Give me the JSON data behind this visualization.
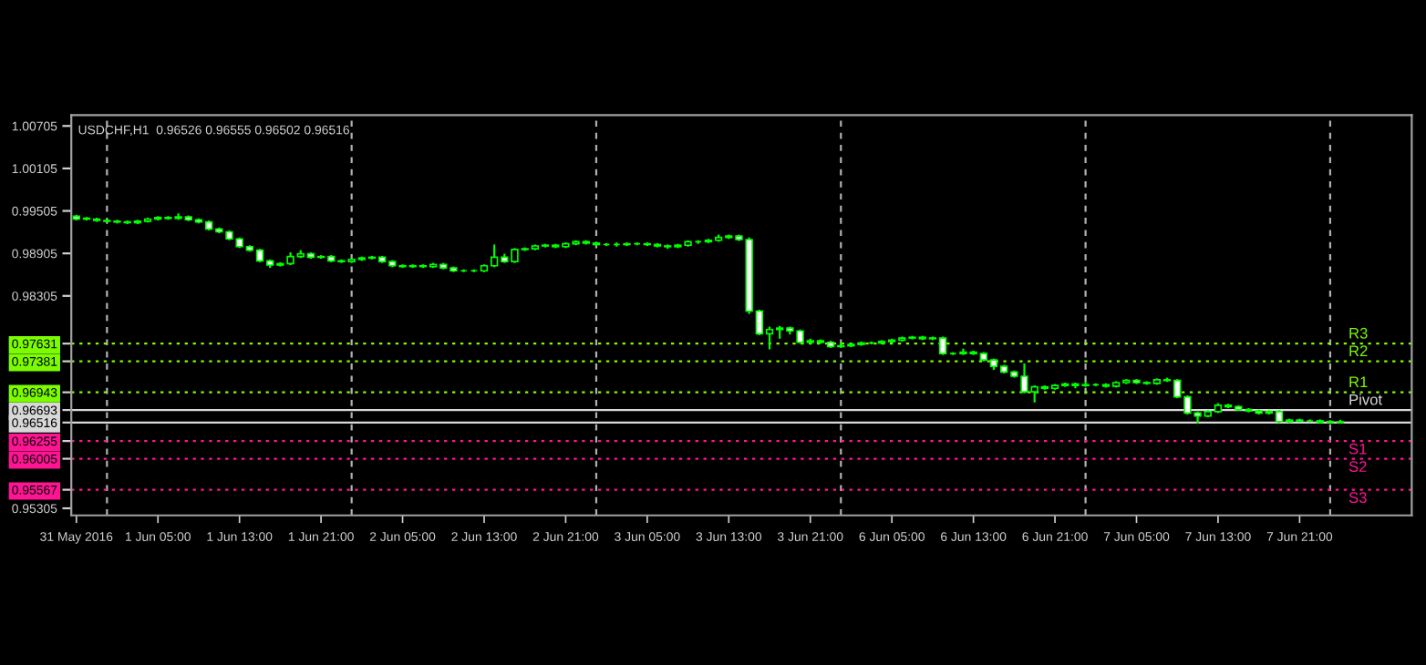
{
  "chart_data": {
    "type": "candlestick",
    "title": "USDCHF,H1  0.96526 0.96555 0.96502 0.96516",
    "categories": [
      "31 May 2016",
      null,
      null,
      null,
      null,
      null,
      null,
      null,
      "1 Jun 05:00",
      null,
      null,
      null,
      null,
      null,
      null,
      null,
      "1 Jun 13:00",
      null,
      null,
      null,
      null,
      null,
      null,
      null,
      "1 Jun 21:00",
      null,
      null,
      null,
      null,
      null,
      null,
      null,
      "2 Jun 05:00",
      null,
      null,
      null,
      null,
      null,
      null,
      null,
      "2 Jun 13:00",
      null,
      null,
      null,
      null,
      null,
      null,
      null,
      "2 Jun 21:00",
      null,
      null,
      null,
      null,
      null,
      null,
      null,
      "3 Jun 05:00",
      null,
      null,
      null,
      null,
      null,
      null,
      null,
      "3 Jun 13:00",
      null,
      null,
      null,
      null,
      null,
      null,
      null,
      "3 Jun 21:00",
      null,
      null,
      null,
      null,
      null,
      null,
      null,
      "6 Jun 05:00",
      null,
      null,
      null,
      null,
      null,
      null,
      null,
      "6 Jun 13:00",
      null,
      null,
      null,
      null,
      null,
      null,
      null,
      "6 Jun 21:00",
      null,
      null,
      null,
      null,
      null,
      null,
      null,
      "7 Jun 05:00",
      null,
      null,
      null,
      null,
      null,
      null,
      null,
      "7 Jun 13:00",
      null,
      null,
      null,
      null,
      null,
      null,
      null,
      "7 Jun 21:00",
      null,
      null,
      null,
      null
    ],
    "ohlc": [
      [
        0.9943,
        0.9945,
        0.9937,
        0.9939
      ],
      [
        0.994,
        0.9942,
        0.9937,
        0.9939
      ],
      [
        0.9939,
        0.9941,
        0.9935,
        0.9937
      ],
      [
        0.9937,
        0.9939,
        0.9934,
        0.9936
      ],
      [
        0.9936,
        0.9938,
        0.9933,
        0.9935
      ],
      [
        0.9935,
        0.9937,
        0.9932,
        0.9934
      ],
      [
        0.9934,
        0.9938,
        0.9932,
        0.9936
      ],
      [
        0.9936,
        0.9941,
        0.9934,
        0.9939
      ],
      [
        0.9939,
        0.9943,
        0.9937,
        0.9941
      ],
      [
        0.9941,
        0.9943,
        0.9938,
        0.994
      ],
      [
        0.994,
        0.9947,
        0.9938,
        0.9942
      ],
      [
        0.9942,
        0.9944,
        0.9936,
        0.9938
      ],
      [
        0.9938,
        0.994,
        0.9933,
        0.9935
      ],
      [
        0.9935,
        0.9937,
        0.9923,
        0.9925
      ],
      [
        0.9925,
        0.9927,
        0.9919,
        0.9921
      ],
      [
        0.9921,
        0.9923,
        0.9909,
        0.9911
      ],
      [
        0.9911,
        0.9913,
        0.9898,
        0.99
      ],
      [
        0.99,
        0.9902,
        0.9893,
        0.9895
      ],
      [
        0.9895,
        0.9897,
        0.9878,
        0.988
      ],
      [
        0.988,
        0.9882,
        0.987,
        0.9874
      ],
      [
        0.9874,
        0.9878,
        0.9872,
        0.9876
      ],
      [
        0.9876,
        0.9892,
        0.9874,
        0.9886
      ],
      [
        0.9886,
        0.9895,
        0.9884,
        0.989
      ],
      [
        0.989,
        0.9892,
        0.9883,
        0.9885
      ],
      [
        0.9885,
        0.9888,
        0.9883,
        0.9886
      ],
      [
        0.9886,
        0.9888,
        0.9878,
        0.988
      ],
      [
        0.988,
        0.9882,
        0.9877,
        0.9879
      ],
      [
        0.9879,
        0.9884,
        0.9877,
        0.9882
      ],
      [
        0.9882,
        0.9886,
        0.988,
        0.9884
      ],
      [
        0.9884,
        0.9887,
        0.9882,
        0.9885
      ],
      [
        0.9885,
        0.9887,
        0.9877,
        0.9879
      ],
      [
        0.9879,
        0.9881,
        0.9871,
        0.9873
      ],
      [
        0.9873,
        0.9875,
        0.987,
        0.9872
      ],
      [
        0.9872,
        0.9875,
        0.987,
        0.9873
      ],
      [
        0.9873,
        0.9875,
        0.987,
        0.9872
      ],
      [
        0.9872,
        0.9877,
        0.987,
        0.9875
      ],
      [
        0.9875,
        0.9877,
        0.9868,
        0.987
      ],
      [
        0.987,
        0.9872,
        0.9864,
        0.9866
      ],
      [
        0.9866,
        0.9868,
        0.9864,
        0.9866
      ],
      [
        0.9866,
        0.9868,
        0.9864,
        0.9866
      ],
      [
        0.9866,
        0.9875,
        0.9864,
        0.9873
      ],
      [
        0.9873,
        0.9903,
        0.9871,
        0.9885
      ],
      [
        0.9885,
        0.989,
        0.9877,
        0.9879
      ],
      [
        0.9879,
        0.9898,
        0.9877,
        0.9896
      ],
      [
        0.9896,
        0.9899,
        0.9894,
        0.9897
      ],
      [
        0.9897,
        0.9903,
        0.9895,
        0.9901
      ],
      [
        0.9901,
        0.9904,
        0.9899,
        0.9902
      ],
      [
        0.9902,
        0.9904,
        0.9898,
        0.99
      ],
      [
        0.99,
        0.9906,
        0.9898,
        0.9904
      ],
      [
        0.9904,
        0.9909,
        0.9902,
        0.9907
      ],
      [
        0.9907,
        0.9909,
        0.9903,
        0.9905
      ],
      [
        0.9905,
        0.9907,
        0.9901,
        0.9903
      ],
      [
        0.9903,
        0.9905,
        0.9901,
        0.9903
      ],
      [
        0.9903,
        0.9906,
        0.99,
        0.9903
      ],
      [
        0.9903,
        0.9906,
        0.9901,
        0.9904
      ],
      [
        0.9904,
        0.9906,
        0.9902,
        0.9904
      ],
      [
        0.9904,
        0.9906,
        0.9901,
        0.9903
      ],
      [
        0.9903,
        0.9905,
        0.9899,
        0.9901
      ],
      [
        0.9901,
        0.9903,
        0.9897,
        0.99
      ],
      [
        0.99,
        0.9904,
        0.9898,
        0.9902
      ],
      [
        0.9902,
        0.9909,
        0.99,
        0.9907
      ],
      [
        0.9907,
        0.9909,
        0.9904,
        0.9907
      ],
      [
        0.9907,
        0.9911,
        0.9905,
        0.9909
      ],
      [
        0.9909,
        0.9917,
        0.9907,
        0.9913
      ],
      [
        0.9913,
        0.9917,
        0.9911,
        0.9915
      ],
      [
        0.9915,
        0.9917,
        0.9908,
        0.991
      ],
      [
        0.991,
        0.9913,
        0.9805,
        0.9809
      ],
      [
        0.9809,
        0.9811,
        0.9775,
        0.9777
      ],
      [
        0.9777,
        0.9787,
        0.9755,
        0.9783
      ],
      [
        0.9783,
        0.9788,
        0.977,
        0.9785
      ],
      [
        0.9785,
        0.9787,
        0.9776,
        0.9781
      ],
      [
        0.9781,
        0.9783,
        0.9763,
        0.9765
      ],
      [
        0.9765,
        0.977,
        0.9763,
        0.9767
      ],
      [
        0.9767,
        0.9769,
        0.9763,
        0.9765
      ],
      [
        0.9765,
        0.9767,
        0.9757,
        0.9759
      ],
      [
        0.9759,
        0.9765,
        0.9757,
        0.976
      ],
      [
        0.976,
        0.9764,
        0.9758,
        0.9762
      ],
      [
        0.9762,
        0.9766,
        0.976,
        0.9764
      ],
      [
        0.9764,
        0.9766,
        0.9762,
        0.9764
      ],
      [
        0.9764,
        0.9768,
        0.9762,
        0.9766
      ],
      [
        0.9766,
        0.977,
        0.9764,
        0.9768
      ],
      [
        0.9768,
        0.9773,
        0.9766,
        0.9771
      ],
      [
        0.9771,
        0.9774,
        0.9769,
        0.9772
      ],
      [
        0.9772,
        0.9774,
        0.9768,
        0.977
      ],
      [
        0.977,
        0.9773,
        0.9768,
        0.9771
      ],
      [
        0.9771,
        0.9773,
        0.9747,
        0.9749
      ],
      [
        0.9749,
        0.9751,
        0.9747,
        0.9749
      ],
      [
        0.9749,
        0.9756,
        0.9747,
        0.9751
      ],
      [
        0.9751,
        0.9753,
        0.9747,
        0.9749
      ],
      [
        0.9749,
        0.9751,
        0.9738,
        0.974
      ],
      [
        0.974,
        0.9742,
        0.9726,
        0.9731
      ],
      [
        0.9731,
        0.9733,
        0.9721,
        0.9723
      ],
      [
        0.9723,
        0.9725,
        0.9715,
        0.9717
      ],
      [
        0.9717,
        0.9735,
        0.9693,
        0.9695
      ],
      [
        0.9695,
        0.9704,
        0.968,
        0.9702
      ],
      [
        0.9702,
        0.9704,
        0.9698,
        0.97
      ],
      [
        0.97,
        0.9706,
        0.9698,
        0.9704
      ],
      [
        0.9704,
        0.9708,
        0.9702,
        0.9706
      ],
      [
        0.9706,
        0.9708,
        0.97,
        0.9704
      ],
      [
        0.9704,
        0.971,
        0.9702,
        0.9705
      ],
      [
        0.9705,
        0.9707,
        0.9703,
        0.9705
      ],
      [
        0.9705,
        0.9707,
        0.9701,
        0.9703
      ],
      [
        0.9703,
        0.971,
        0.9701,
        0.9708
      ],
      [
        0.9708,
        0.9713,
        0.9706,
        0.9711
      ],
      [
        0.9711,
        0.9713,
        0.9706,
        0.9708
      ],
      [
        0.9708,
        0.971,
        0.9705,
        0.9707
      ],
      [
        0.9707,
        0.9714,
        0.9705,
        0.9712
      ],
      [
        0.9712,
        0.9715,
        0.9709,
        0.9711
      ],
      [
        0.9711,
        0.9713,
        0.9686,
        0.9688
      ],
      [
        0.9688,
        0.969,
        0.9663,
        0.9665
      ],
      [
        0.9665,
        0.9667,
        0.965,
        0.9661
      ],
      [
        0.9661,
        0.9669,
        0.9659,
        0.9667
      ],
      [
        0.9667,
        0.9679,
        0.9665,
        0.9676
      ],
      [
        0.9676,
        0.9678,
        0.9672,
        0.9674
      ],
      [
        0.9674,
        0.9676,
        0.9668,
        0.967
      ],
      [
        0.967,
        0.9672,
        0.9666,
        0.9668
      ],
      [
        0.9668,
        0.967,
        0.9663,
        0.9665
      ],
      [
        0.9665,
        0.9669,
        0.9663,
        0.9667
      ],
      [
        0.9667,
        0.9669,
        0.9651,
        0.9653
      ],
      [
        0.9653,
        0.9657,
        0.9651,
        0.9655
      ],
      [
        0.9655,
        0.9657,
        0.9652,
        0.9654
      ],
      [
        0.9654,
        0.9656,
        0.9652,
        0.9654
      ],
      [
        0.9654,
        0.9656,
        0.965,
        0.9652
      ],
      [
        0.9652,
        0.9655,
        0.965,
        0.9653
      ],
      [
        0.96526,
        0.96555,
        0.96502,
        0.96516
      ]
    ],
    "ylim": [
      0.95205,
      1.00859
    ],
    "yticks": [
      1.00705,
      1.00105,
      0.99505,
      0.98905,
      0.98305,
      0.97631,
      0.97381,
      0.96943,
      0.96693,
      0.96516,
      0.96255,
      0.96005,
      0.95567,
      0.95305
    ],
    "ref_lines": [
      {
        "axis": "y",
        "value": 0.97631,
        "label": "R3",
        "color": "#7cfc00",
        "line_style": "dotted"
      },
      {
        "axis": "y",
        "value": 0.97381,
        "label": "R2",
        "color": "#7cfc00",
        "line_style": "dotted"
      },
      {
        "axis": "y",
        "value": 0.96943,
        "label": "R1",
        "color": "#7cfc00",
        "line_style": "dotted"
      },
      {
        "axis": "y",
        "value": 0.96693,
        "label": "Pivot",
        "color": "#d8d8d8",
        "line_style": "solid"
      },
      {
        "axis": "y",
        "value": 0.96516,
        "color": "#d8d8d8",
        "line_style": "solid"
      },
      {
        "axis": "y",
        "value": 0.96255,
        "label": "S1",
        "color": "#ff1493",
        "line_style": "dotted"
      },
      {
        "axis": "y",
        "value": 0.96005,
        "label": "S2",
        "color": "#ff1493",
        "line_style": "dotted"
      },
      {
        "axis": "y",
        "value": 0.95567,
        "label": "S3",
        "color": "#ff1493",
        "line_style": "dotted"
      }
    ]
  }
}
